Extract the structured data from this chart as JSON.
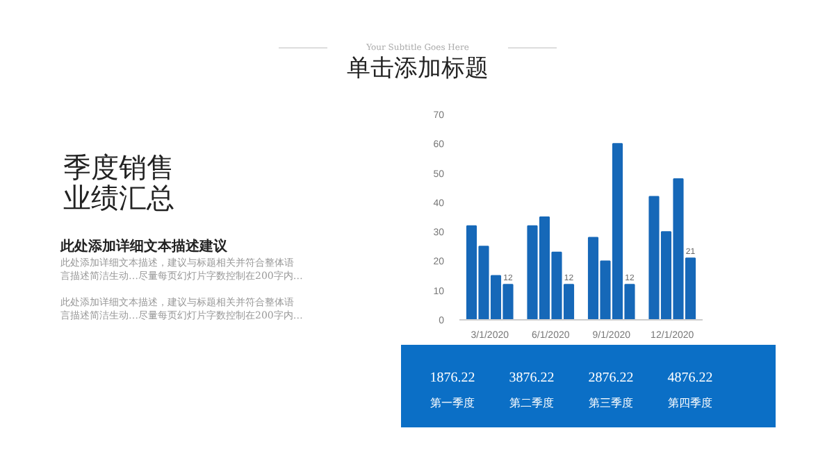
{
  "chart_data": [
    {
      "type": "bar",
      "title": "单击添加标题",
      "subtitle": "Your Subtitle Goes Here",
      "categories": [
        "3/1/2020",
        "6/1/2020",
        "9/1/2020",
        "12/1/2020"
      ],
      "series": [
        {
          "color": "#1668b8",
          "values": [
            32,
            32,
            28,
            42
          ]
        },
        {
          "color": "#1668b8",
          "values": [
            25,
            35,
            20,
            30
          ]
        },
        {
          "color": "#1668b8",
          "values": [
            15,
            23,
            60,
            48
          ]
        },
        {
          "color": "#1668b8",
          "values": [
            12,
            12,
            12,
            21
          ],
          "value_labels": [
            "12",
            "12",
            "12",
            "21"
          ]
        }
      ],
      "ylim": [
        0,
        70
      ],
      "yticks": [
        0,
        10,
        20,
        30,
        40,
        50,
        60,
        70
      ],
      "grid": false
    },
    {
      "type": "other",
      "title": "季度销售业绩汇总",
      "subtitle": "此处添加详细文本描述建议",
      "annotations": [
        "此处添加详细文本描述，建议与标题相关并符合整体语",
        "言描述简洁生动…尽量每页幻灯片字数控制在200字内…",
        "此处添加详细文本描述，建议与标题相关并符合整体语",
        "言描述简洁生动…尽量每页幻灯片字数控制在200字内…"
      ]
    },
    {
      "type": "other",
      "categories": [
        "第一季度",
        "第二季度",
        "第三季度",
        "第四季度"
      ],
      "values": [
        1876.22,
        3876.22,
        2876.22,
        4876.22
      ],
      "data_labels": true,
      "color": "#0b6fc6"
    }
  ]
}
